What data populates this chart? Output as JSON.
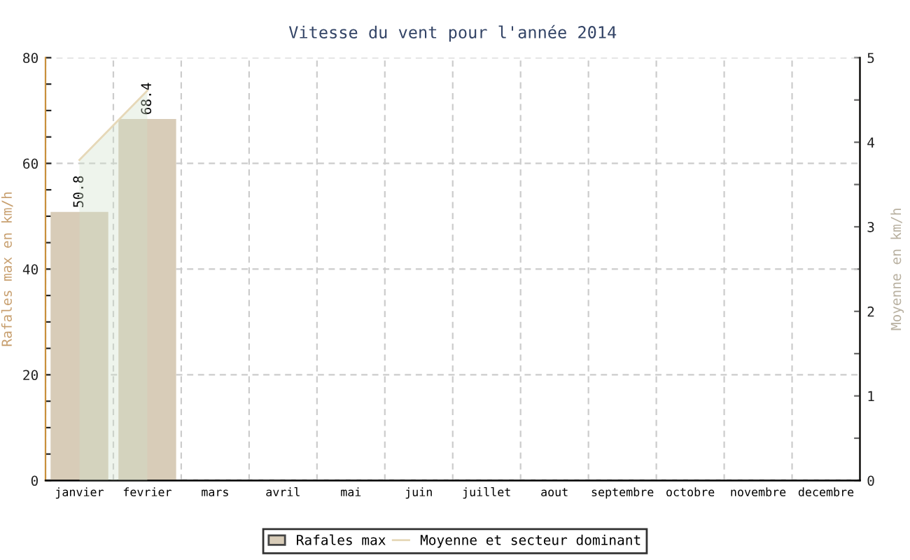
{
  "chart_data": {
    "type": "bar",
    "title": "Vitesse du vent pour l'année 2014",
    "ylabel": "Rafales max en km/h",
    "y2label": "Moyenne en km/h",
    "categories": [
      "janvier",
      "fevrier",
      "mars",
      "avril",
      "mai",
      "juin",
      "juillet",
      "aout",
      "septembre",
      "octobre",
      "novembre",
      "decembre"
    ],
    "series": [
      {
        "name": "Rafales max",
        "color": "#d8ccb8",
        "values": [
          50.8,
          68.4,
          null,
          null,
          null,
          null,
          null,
          null,
          null,
          null,
          null,
          null
        ],
        "value_labels": [
          "50.8",
          "68.4",
          null,
          null,
          null,
          null,
          null,
          null,
          null,
          null,
          null,
          null
        ]
      },
      {
        "name": "Moyenne et secteur dominant",
        "type": "area",
        "axis": "y2",
        "color": "#e6d8b8",
        "values": [
          3.79,
          4.61,
          null,
          null,
          null,
          null,
          null,
          null,
          null,
          null,
          null,
          null
        ]
      }
    ],
    "ylim": [
      0,
      80
    ],
    "yticks": [
      0,
      {
        "value": 5,
        "label": null
      },
      {
        "value": 10,
        "label": null
      },
      {
        "value": 15,
        "label": null
      },
      20,
      {
        "value": 25,
        "label": null
      },
      {
        "value": 30,
        "label": null
      },
      {
        "value": 35,
        "label": null
      },
      40,
      {
        "value": 45,
        "label": null
      },
      {
        "value": 50,
        "label": null
      },
      {
        "value": 55,
        "label": null
      },
      60,
      {
        "value": 65,
        "label": null
      },
      {
        "value": 70,
        "label": null
      },
      {
        "value": 75,
        "label": null
      },
      80
    ],
    "y2lim": [
      0,
      5
    ],
    "y2ticks": [
      0,
      {
        "value": 0.5,
        "label": null
      },
      1,
      {
        "value": 1.5,
        "label": null
      },
      2,
      {
        "value": 2.5,
        "label": null
      },
      3,
      {
        "value": 3.5,
        "label": null
      },
      4,
      {
        "value": 4.5,
        "label": null
      },
      5
    ],
    "grid": true,
    "legend": "bottom"
  }
}
